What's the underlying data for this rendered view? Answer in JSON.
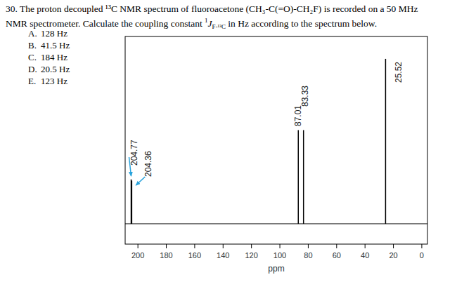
{
  "question": {
    "line1": "30. The proton decoupled ¹³C NMR spectrum of fluoroacetone (CH₃-C(=O)-CH₂F) is recorded on a 50 MHz",
    "line2_before": "NMR spectrometer. Calculate the coupling constant ",
    "coupling_symbol": {
      "sup": "1",
      "main": "J",
      "sub": "F-¹³C"
    },
    "line2_after": " in Hz according to the spectrum below.",
    "options": [
      {
        "letter": "A.",
        "text": "128 Hz"
      },
      {
        "letter": "B.",
        "text": "41.5 Hz"
      },
      {
        "letter": "C.",
        "text": "184 Hz"
      },
      {
        "letter": "D.",
        "text": "20.5 Hz"
      },
      {
        "letter": "E.",
        "text": "123 Hz"
      }
    ]
  },
  "chart_data": {
    "type": "stem",
    "x": [
      204.77,
      204.36,
      87.01,
      83.33,
      25.52
    ],
    "values": [
      21.8,
      21.2,
      46,
      46,
      81
    ],
    "color": "#000000",
    "xlim": [
      209,
      -4
    ],
    "xticks": [
      200,
      180,
      160,
      140,
      120,
      100,
      80,
      60,
      40,
      20,
      0
    ],
    "ylim": [
      -10,
      92
    ],
    "x_label": "ppm",
    "data_labels": true,
    "tick_labels": "x"
  }
}
